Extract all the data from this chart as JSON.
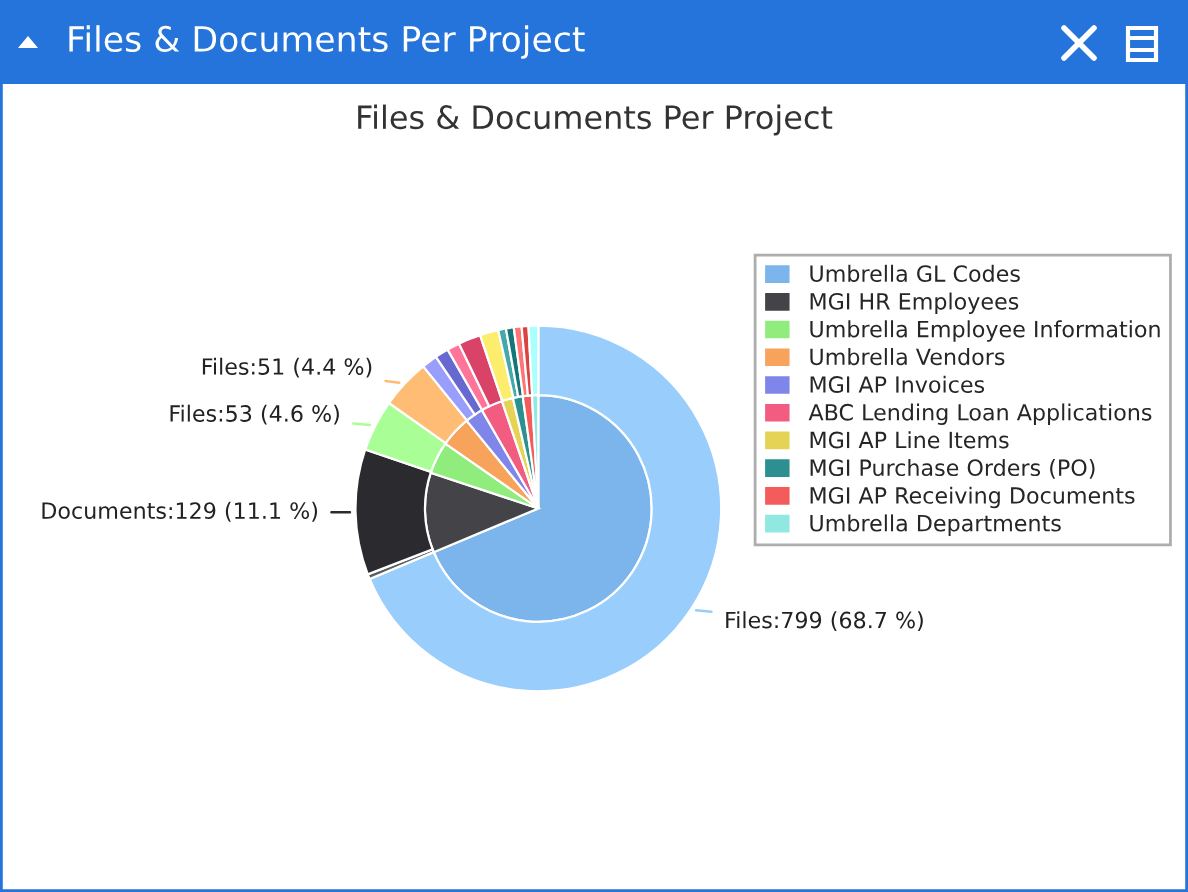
{
  "chart_data": {
    "type": "pie",
    "title": "Files & Documents Per Project",
    "annotations": [
      "Files & Documents Per Project"
    ],
    "categories": [
      "Umbrella GL Codes",
      "MGI HR Employees",
      "Umbrella Employee Information",
      "Umbrella Vendors",
      "MGI AP Invoices",
      "ABC Lending Loan Applications",
      "MGI AP Line Items",
      "MGI Purchase Orders (PO)",
      "MGI AP Receiving Documents",
      "Umbrella Departments"
    ],
    "series": [
      {
        "values": [
          68.7,
          11.4,
          4.6,
          4.4,
          2.6,
          3.1,
          1.6,
          1.4,
          1.3,
          0.9
        ],
        "colors": [
          "#7cb5ec",
          "#434348",
          "#90ed7d",
          "#f7a35c",
          "#8085e9",
          "#f15c80",
          "#e4d354",
          "#2b908f",
          "#f45b5b",
          "#91e8e1"
        ]
      },
      {
        "type": "donut",
        "x": [
          null,
          null,
          null,
          null,
          null,
          null,
          null,
          null,
          null,
          null,
          null,
          null,
          null,
          null,
          null
        ],
        "values": [
          799,
          5,
          129,
          53,
          51,
          16,
          14,
          13,
          23,
          19,
          8,
          8,
          8,
          7,
          10
        ],
        "colors": [
          "#99cdfb",
          "#5c5c61",
          "#2a2a2f",
          "#a9ff96",
          "#ffbc75",
          "#999efc",
          "#6769d0",
          "#ff7599",
          "#d84367",
          "#fded6d",
          "#44a9a8",
          "#127776",
          "#ff7474",
          "#db4242",
          "#aaffff"
        ],
        "value_labels": [
          "Files:799 (68.7 %)",
          null,
          "Documents:129 (11.1 %)",
          "Files:53 (4.6 %)",
          "Files:51 (4.4 %)",
          null,
          null,
          null,
          null,
          null,
          null,
          null,
          null,
          null,
          null
        ]
      }
    ],
    "legend": "right"
  }
}
